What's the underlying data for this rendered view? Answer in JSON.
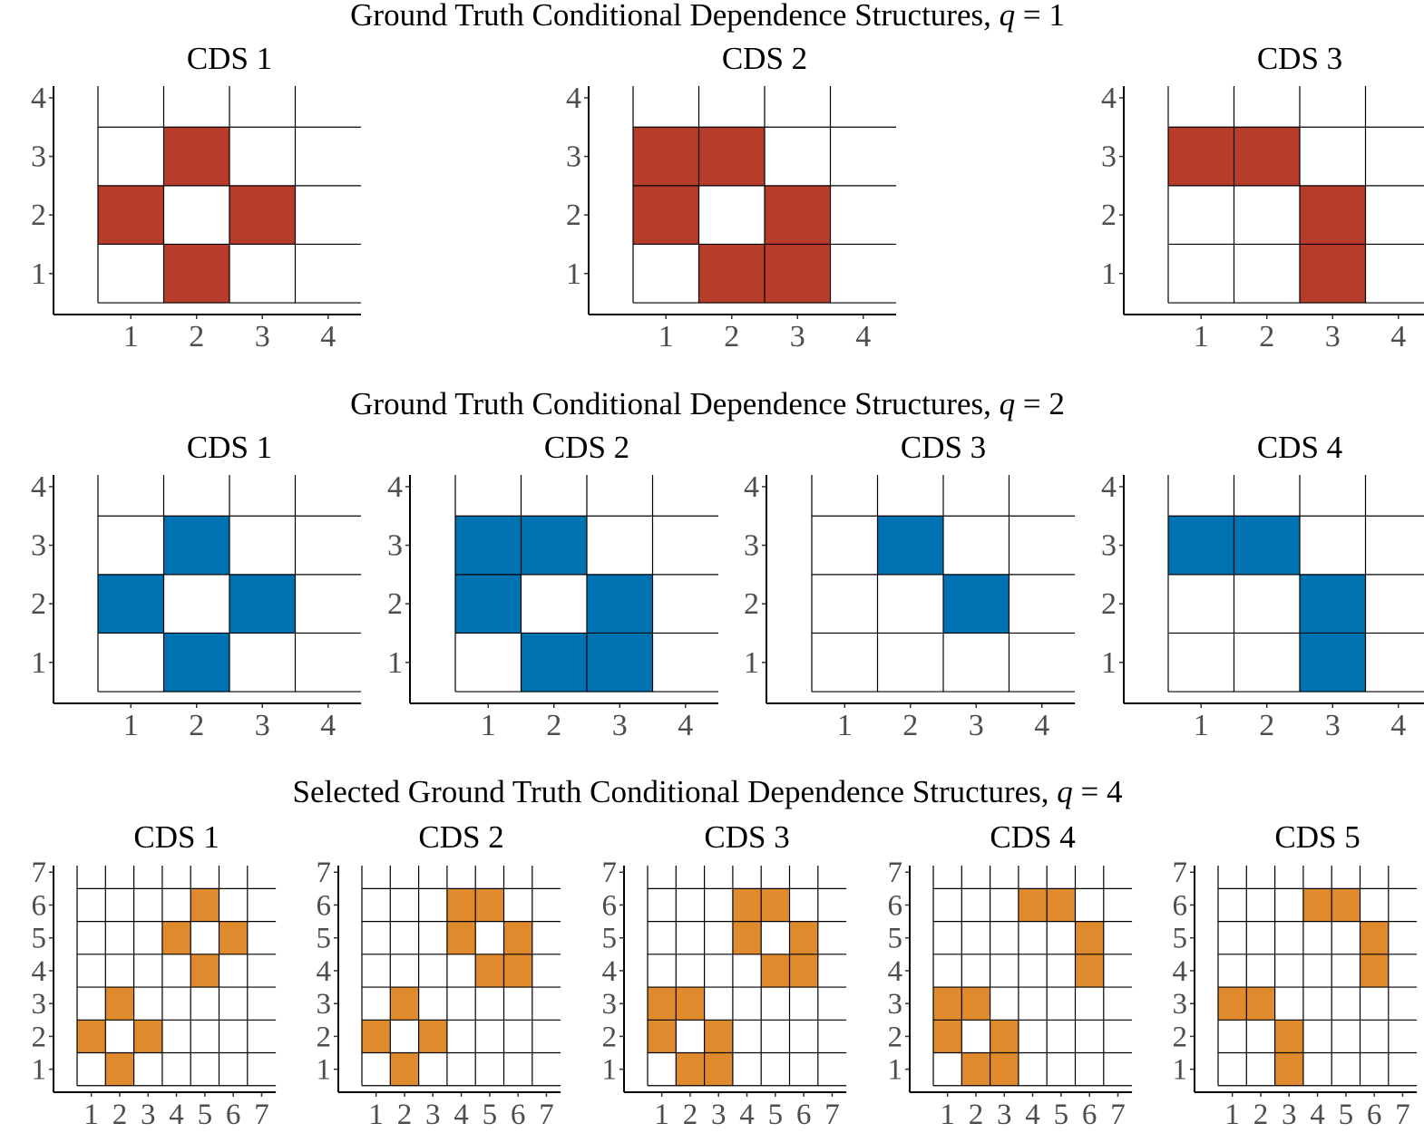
{
  "chart_data": [
    {
      "type": "heatmap",
      "title": "Ground Truth Conditional Dependence Structures, q = 1",
      "title_parts": {
        "prefix": "Ground Truth Conditional Dependence Structures, ",
        "var": "q",
        "suffix": " = 1"
      },
      "fill_color": "#B83C2A",
      "grid_size": 4,
      "axis_range": [
        0.5,
        4.2
      ],
      "x_ticks": [
        "1",
        "2",
        "3",
        "4"
      ],
      "y_ticks": [
        "1",
        "2",
        "3",
        "4"
      ],
      "panels": [
        {
          "title": "CDS 1",
          "cells": [
            [
              2,
              3
            ],
            [
              1,
              2
            ],
            [
              3,
              2
            ],
            [
              2,
              1
            ]
          ]
        },
        {
          "title": "CDS 2",
          "cells": [
            [
              1,
              3
            ],
            [
              2,
              3
            ],
            [
              1,
              2
            ],
            [
              3,
              2
            ],
            [
              2,
              1
            ],
            [
              3,
              1
            ]
          ]
        },
        {
          "title": "CDS 3",
          "cells": [
            [
              1,
              3
            ],
            [
              2,
              3
            ],
            [
              3,
              2
            ],
            [
              3,
              1
            ]
          ]
        }
      ]
    },
    {
      "type": "heatmap",
      "title": "Ground Truth Conditional Dependence Structures, q = 2",
      "title_parts": {
        "prefix": "Ground Truth Conditional Dependence Structures, ",
        "var": "q",
        "suffix": " = 2"
      },
      "fill_color": "#0072B2",
      "grid_size": 4,
      "axis_range": [
        0.5,
        4.2
      ],
      "x_ticks": [
        "1",
        "2",
        "3",
        "4"
      ],
      "y_ticks": [
        "1",
        "2",
        "3",
        "4"
      ],
      "panels": [
        {
          "title": "CDS 1",
          "cells": [
            [
              2,
              3
            ],
            [
              1,
              2
            ],
            [
              3,
              2
            ],
            [
              2,
              1
            ]
          ]
        },
        {
          "title": "CDS 2",
          "cells": [
            [
              1,
              3
            ],
            [
              2,
              3
            ],
            [
              1,
              2
            ],
            [
              3,
              2
            ],
            [
              2,
              1
            ],
            [
              3,
              1
            ]
          ]
        },
        {
          "title": "CDS 3",
          "cells": [
            [
              2,
              3
            ],
            [
              3,
              2
            ]
          ]
        },
        {
          "title": "CDS 4",
          "cells": [
            [
              1,
              3
            ],
            [
              2,
              3
            ],
            [
              3,
              2
            ],
            [
              3,
              1
            ]
          ]
        }
      ]
    },
    {
      "type": "heatmap",
      "title": "Selected Ground Truth Conditional Dependence Structures, q = 4",
      "title_parts": {
        "prefix": "Selected Ground Truth Conditional Dependence Structures, ",
        "var": "q",
        "suffix": " = 4"
      },
      "fill_color": "#E08A2E",
      "grid_size": 7,
      "axis_range": [
        0.5,
        7.2
      ],
      "x_ticks": [
        "1",
        "2",
        "3",
        "4",
        "5",
        "6",
        "7"
      ],
      "y_ticks": [
        "1",
        "2",
        "3",
        "4",
        "5",
        "6",
        "7"
      ],
      "panels": [
        {
          "title": "CDS 1",
          "cells": [
            [
              2,
              3
            ],
            [
              1,
              2
            ],
            [
              3,
              2
            ],
            [
              2,
              1
            ],
            [
              5,
              6
            ],
            [
              4,
              5
            ],
            [
              6,
              5
            ],
            [
              5,
              4
            ]
          ]
        },
        {
          "title": "CDS 2",
          "cells": [
            [
              2,
              3
            ],
            [
              1,
              2
            ],
            [
              3,
              2
            ],
            [
              2,
              1
            ],
            [
              4,
              6
            ],
            [
              5,
              6
            ],
            [
              4,
              5
            ],
            [
              6,
              5
            ],
            [
              5,
              4
            ],
            [
              6,
              4
            ]
          ]
        },
        {
          "title": "CDS 3",
          "cells": [
            [
              1,
              3
            ],
            [
              2,
              3
            ],
            [
              1,
              2
            ],
            [
              3,
              2
            ],
            [
              2,
              1
            ],
            [
              3,
              1
            ],
            [
              4,
              6
            ],
            [
              5,
              6
            ],
            [
              4,
              5
            ],
            [
              6,
              5
            ],
            [
              5,
              4
            ],
            [
              6,
              4
            ]
          ]
        },
        {
          "title": "CDS 4",
          "cells": [
            [
              1,
              3
            ],
            [
              2,
              3
            ],
            [
              1,
              2
            ],
            [
              3,
              2
            ],
            [
              2,
              1
            ],
            [
              3,
              1
            ],
            [
              4,
              6
            ],
            [
              5,
              6
            ],
            [
              6,
              5
            ],
            [
              6,
              4
            ]
          ]
        },
        {
          "title": "CDS 5",
          "cells": [
            [
              1,
              3
            ],
            [
              2,
              3
            ],
            [
              3,
              2
            ],
            [
              3,
              1
            ],
            [
              4,
              6
            ],
            [
              5,
              6
            ],
            [
              6,
              5
            ],
            [
              6,
              4
            ]
          ]
        }
      ]
    }
  ]
}
